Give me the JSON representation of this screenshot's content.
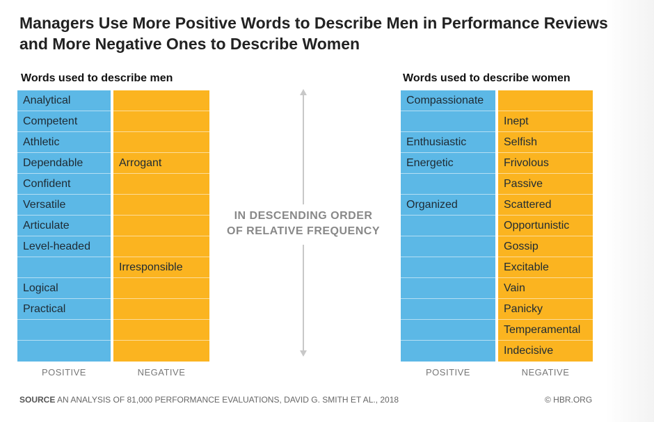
{
  "title": "Managers Use More Positive Words to Describe Men in Performance Reviews and More Negative Ones to Describe Women",
  "colors": {
    "positive": "#5cb8e6",
    "negative": "#fbb420"
  },
  "chart_data": [
    {
      "type": "table",
      "title": "Words used to describe men",
      "columns": [
        "POSITIVE",
        "NEGATIVE"
      ],
      "rows": [
        [
          "Analytical",
          ""
        ],
        [
          "Competent",
          ""
        ],
        [
          "Athletic",
          ""
        ],
        [
          "Dependable",
          "Arrogant"
        ],
        [
          "Confident",
          ""
        ],
        [
          "Versatile",
          ""
        ],
        [
          "Articulate",
          ""
        ],
        [
          "Level-headed",
          ""
        ],
        [
          "",
          "Irresponsible"
        ],
        [
          "Logical",
          ""
        ],
        [
          "Practical",
          ""
        ],
        [
          "",
          ""
        ],
        [
          "",
          ""
        ]
      ]
    },
    {
      "type": "table",
      "title": "Words used to describe women",
      "columns": [
        "POSITIVE",
        "NEGATIVE"
      ],
      "rows": [
        [
          "Compassionate",
          ""
        ],
        [
          "",
          "Inept"
        ],
        [
          "Enthusiastic",
          "Selfish"
        ],
        [
          "Energetic",
          "Frivolous"
        ],
        [
          "",
          "Passive"
        ],
        [
          "Organized",
          "Scattered"
        ],
        [
          "",
          "Opportunistic"
        ],
        [
          "",
          "Gossip"
        ],
        [
          "",
          "Excitable"
        ],
        [
          "",
          "Vain"
        ],
        [
          "",
          "Panicky"
        ],
        [
          "",
          "Temperamental"
        ],
        [
          "",
          "Indecisive"
        ]
      ]
    }
  ],
  "middle_label_line1": "IN DESCENDING ORDER",
  "middle_label_line2": "OF RELATIVE FREQUENCY",
  "footer": {
    "source_label": "SOURCE",
    "source_text": "AN ANALYSIS OF 81,000 PERFORMANCE EVALUATIONS, DAVID G. SMITH ET AL., 2018",
    "credit": "© HBR.ORG"
  }
}
